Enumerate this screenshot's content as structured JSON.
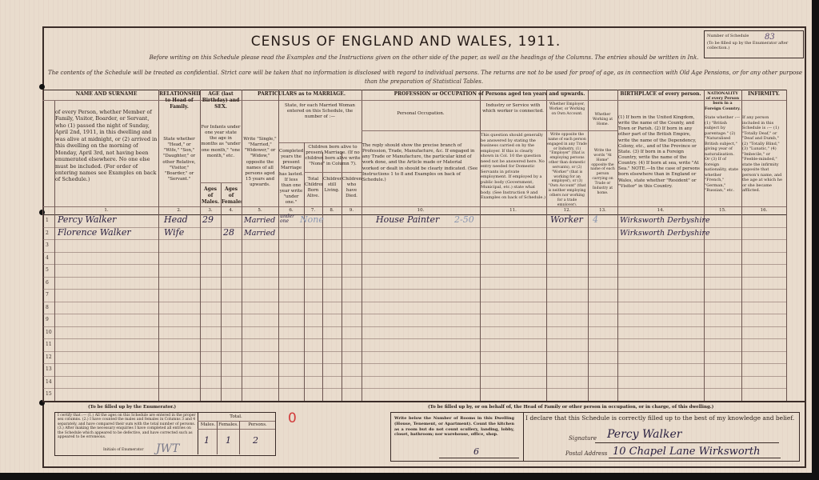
{
  "document": {
    "title": "CENSUS OF ENGLAND AND WALES, 1911.",
    "instruction": "Before writing on this Schedule please read the Examples and the Instructions given on the other side of the paper, as well as the headings of the Columns.  The entries should be written in Ink.",
    "confidential_1": "The contents of the Schedule will be treated as confidential.  Strict care will be taken that no information is disclosed with regard to individual persons.  The returns are not to be used for proof of age, as in connection with Old Age Pensions, or for any other purpose",
    "confidential_2": "than the preparation of Statistical Tables.",
    "schedule_label": "Number of Schedule",
    "schedule_note": "(To be filled up by the Enumerator after collection.)",
    "schedule_number": "83"
  },
  "headers": {
    "name": "NAME AND SURNAME",
    "name_desc": "of every Person, whether Member of Family, Visitor, Boarder, or Servant, who (1) passed the night of Sunday, April 2nd, 1911, in this dwelling and was alive at midnight, or (2) arrived in this dwelling on the morning of Monday, April 3rd, not having been enumerated elsewhere. No one else must be included. (For order of entering names see Examples on back of Schedule.)",
    "relationship": "RELATIONSHIP to Head of Family.",
    "relationship_desc": "State whether \"Head,\" or \"Wife,\" \"Son,\" \"Daughter,\" or other Relative, \"Visitor,\" \"Boarder,\" or \"Servant.\"",
    "age": "AGE (last Birthday) and SEX.",
    "age_desc": "For Infants under one year state the age in months as \"under one month,\" \"one month,\" etc.",
    "age_males": "Ages of Males.",
    "age_females": "Ages of Females.",
    "marriage": "PARTICULARS as to MARRIAGE.",
    "marriage_status": "Write \"Single,\" \"Married,\" \"Widower,\" or \"Widow,\" opposite the names of all persons aged 15 years and upwards.",
    "married_woman": "State, for each Married Woman entered on this Schedule, the number of :—",
    "years": "Completed years the present Marriage has lasted. If less than one year write \"under one.\"",
    "children_group": "Children born alive to present Marriage. (If no children born alive write \"None\" in Column 7).",
    "children_total": "Total Children Born Alive.",
    "children_living": "Children still Living.",
    "children_died": "Children who have Died.",
    "profession": "PROFESSION or OCCUPATION of Persons aged ten years and upwards.",
    "personal_occ": "Personal Occupation.",
    "personal_occ_desc": "The reply should show the precise branch of Profession, Trade, Manufacture, &c. If engaged in any Trade or Manufacture, the particular kind of work done, and the Article made or Material worked or dealt in should be clearly indicated. (See Instructions 1 to 8 and Examples on back of Schedule.)",
    "industry": "Industry or Service with which worker is connected.",
    "industry_desc": "This question should generally be answered by stating the business carried on by the employer. If this is clearly shown in Col. 10 the question need not be answered here. No entry needed for Domestic Servants in private employment. If employed by a public body (Government, Municipal, etc.) state what body. (See Instruction 9 and Examples on back of Schedule.)",
    "employer": "Whether Employer, Worker, or Working on Own Account.",
    "employer_desc": "Write opposite the name of each person engaged in any Trade or Industry, (1) \"Employer\" (that is employing persons other than domestic servants), or (2) \"Worker\" (that is working for an employer), or (3) \"Own Account\" (that is neither employing others nor working for a trade employer).",
    "at_home": "Whether Working at Home.",
    "at_home_desc": "Write the words \"At Home\" opposite the name of each person carrying on Trade or Industry at home.",
    "birthplace": "BIRTHPLACE of every person.",
    "birthplace_desc": "(1) If born in the United Kingdom, write the name of the County, and Town or Parish. (2) If born in any other part of the British Empire, write the name of the Dependency, Colony, etc., and of the Province or State. (3) If born in a Foreign Country, write the name of the Country. (4) If born at sea, write \"At Sea.\" NOTE.—In the case of persons born elsewhere than in England or Wales, state whether \"Resident\" or \"Visitor\" in this Country.",
    "nationality": "NATIONALITY of every Person born in a Foreign Country.",
    "nationality_desc": "State whether :— (1) \"British subject by parentage.\" (2) \"Naturalised British subject,\" giving year of naturalisation. Or (3) If of foreign nationality, state whether \"French,\" \"German,\" \"Russian,\" etc.",
    "infirmity": "INFIRMITY.",
    "infirmity_desc": "If any person included in this Schedule is :— (1) \"Totally Deaf,\" or \"Deaf and Dumb,\" (2) \"Totally Blind,\" (3) \"Lunatic,\" (4) \"Imbecile,\" or \"Feeble-minded,\" state the infirmity opposite that person's name, and the age at which he or she became afflicted.",
    "col_numbers": [
      "1.",
      "2.",
      "3.",
      "4.",
      "5.",
      "6.",
      "7.",
      "8.",
      "9.",
      "10.",
      "11.",
      "12.",
      "13.",
      "14.",
      "15.",
      "16."
    ]
  },
  "rows": [
    {
      "no": "1",
      "name": "Percy Walker",
      "relationship": "Head",
      "age_m": "29",
      "age_f": "",
      "status": "Married",
      "years": "under one",
      "children": "None",
      "occupation": "House Painter",
      "occ_code": "2-50",
      "employer": "Worker",
      "emp_code": "4",
      "birthplace": "Wirksworth Derbyshire"
    },
    {
      "no": "2",
      "name": "Florence Walker",
      "relationship": "Wife",
      "age_m": "",
      "age_f": "28",
      "status": "Married",
      "years": "",
      "children": "",
      "occupation": "",
      "occ_code": "",
      "employer": "",
      "emp_code": "",
      "birthplace": "Wirksworth Derbyshire"
    }
  ],
  "row_numbers": [
    "1",
    "2",
    "3",
    "4",
    "5",
    "6",
    "7",
    "8",
    "9",
    "10",
    "11",
    "12",
    "13",
    "14",
    "15"
  ],
  "enumerator": {
    "heading": "(To be filled up by the Enumerator.)",
    "certify": "I certify that :— (1.) All the ages on this Schedule are entered in the proper sex columns. (2.) I have counted the males and females in Columns 3 and 4 separately, and have compared their sum with the total number of persons. (3.) After making the necessary enquiries I have completed all entries on the Schedule which appeared to be defective, and have corrected such as appeared to be erroneous.",
    "initials_label": "Initials of Enumerator",
    "initials": "JWT",
    "total_label": "Total.",
    "males_label": "Males.",
    "females_label": "Females.",
    "persons_label": "Persons.",
    "males": "1",
    "females": "1",
    "persons": "2",
    "red_mark": "0"
  },
  "head": {
    "heading": "(To be filled up by, or on behalf of, the Head of Family or other person in occupation, or in charge, of this dwelling.)",
    "rooms_desc": "Write below the Number of Rooms in this Dwelling (House, Tenement, or Apartment). Count the kitchen as a room but do not count scullery, landing, lobby, closet, bathroom; nor warehouse, office, shop.",
    "rooms": "6",
    "declaration": "I declare that this Schedule is correctly filled up to the best of my knowledge and belief.",
    "signature_label": "Signature",
    "signature": "Percy Walker",
    "address_label": "Postal Address",
    "address": "10 Chapel Lane Wirksworth"
  }
}
